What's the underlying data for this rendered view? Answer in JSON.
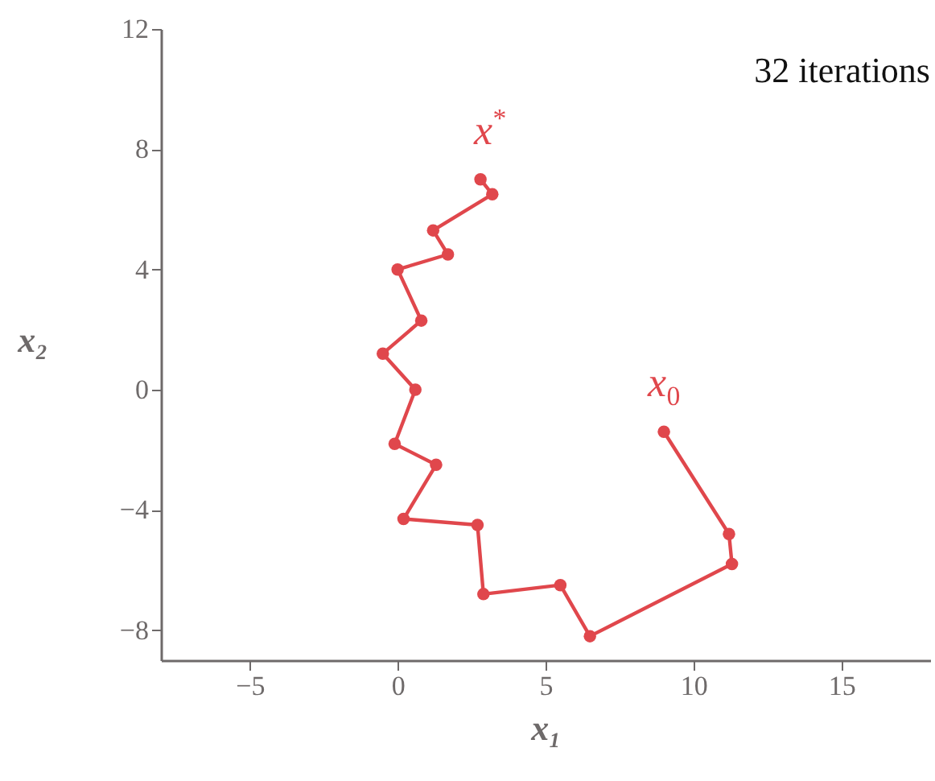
{
  "chart_data": {
    "type": "line",
    "xlabel": "x₁",
    "ylabel": "x₂",
    "xlim": [
      -8,
      18
    ],
    "ylim": [
      -9,
      12
    ],
    "xticks": [
      -5,
      0,
      5,
      10,
      15
    ],
    "yticks": [
      -8,
      -4,
      0,
      4,
      8,
      12
    ],
    "grid": false,
    "marker": "circle",
    "line_style": "solid",
    "series": [
      {
        "color": "#e0474c",
        "x": [
          9.0,
          11.2,
          11.3,
          6.5,
          5.5,
          2.9,
          2.7,
          0.2,
          1.3,
          -0.1,
          0.6,
          -0.5,
          0.8,
          0.0,
          1.7,
          1.2,
          3.2,
          2.8
        ],
        "values": [
          -1.4,
          -4.8,
          -5.8,
          -8.2,
          -6.5,
          -6.8,
          -4.5,
          -4.3,
          -2.5,
          -1.8,
          0.0,
          1.2,
          2.3,
          4.0,
          4.5,
          5.3,
          6.5,
          7.0
        ]
      }
    ],
    "annotations": [
      "32 iterations",
      "x$^{*}$",
      "x$_{0}$"
    ]
  }
}
